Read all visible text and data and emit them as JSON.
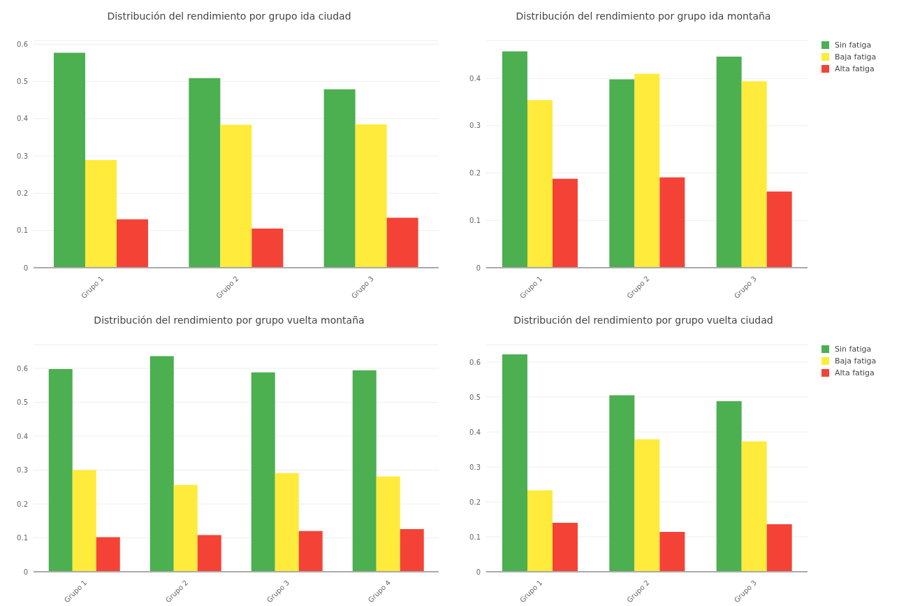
{
  "chart_data": [
    {
      "type": "bar",
      "title": "Distribución del rendimiento por grupo ida ciudad",
      "categories": [
        "Grupo 1",
        "Grupo 2",
        "Grupo 3"
      ],
      "series": [
        {
          "color": "#4caf50",
          "values": [
            0.577,
            0.509,
            0.479
          ]
        },
        {
          "color": "#ffeb3b",
          "values": [
            0.289,
            0.384,
            0.385
          ]
        },
        {
          "color": "#f44336",
          "values": [
            0.13,
            0.105,
            0.134
          ]
        }
      ],
      "ylim": [
        0,
        0.61
      ],
      "yticks": [
        0,
        0.1,
        0.2,
        0.3,
        0.4,
        0.5,
        0.6
      ],
      "grid": "y",
      "legend": false
    },
    {
      "type": "bar",
      "title": "Distribución del rendimiento por grupo ida montaña",
      "categories": [
        "Grupo 1",
        "Grupo 2",
        "Grupo 3"
      ],
      "series": [
        {
          "name": "Sin fatiga",
          "color": "#4caf50",
          "values": [
            0.457,
            0.398,
            0.446
          ]
        },
        {
          "name": "Baja fatiga",
          "color": "#ffeb3b",
          "values": [
            0.354,
            0.41,
            0.394
          ]
        },
        {
          "name": "Alta fatiga",
          "color": "#f44336",
          "values": [
            0.188,
            0.191,
            0.161
          ]
        }
      ],
      "ylim": [
        0,
        0.48
      ],
      "yticks": [
        0,
        0.1,
        0.2,
        0.3,
        0.4
      ],
      "grid": "y",
      "legend": "top right"
    },
    {
      "type": "bar",
      "title": "Distribución del rendimiento por grupo vuelta montaña",
      "categories": [
        "Grupo 1",
        "Grupo 2",
        "Grupo 3",
        "Grupo 4"
      ],
      "series": [
        {
          "color": "#4caf50",
          "values": [
            0.598,
            0.636,
            0.588,
            0.594
          ]
        },
        {
          "color": "#ffeb3b",
          "values": [
            0.3,
            0.256,
            0.291,
            0.281
          ]
        },
        {
          "color": "#f44336",
          "values": [
            0.102,
            0.108,
            0.12,
            0.126
          ]
        }
      ],
      "ylim": [
        0,
        0.67
      ],
      "yticks": [
        0,
        0.1,
        0.2,
        0.3,
        0.4,
        0.5,
        0.6
      ],
      "grid": "y",
      "legend": false
    },
    {
      "type": "bar",
      "title": "Distribución del rendimiento por grupo vuelta ciudad",
      "categories": [
        "Grupo 1",
        "Grupo 2",
        "Grupo 3"
      ],
      "series": [
        {
          "name": "Sin fatiga",
          "color": "#4caf50",
          "values": [
            0.622,
            0.505,
            0.488
          ]
        },
        {
          "name": "Baja fatiga",
          "color": "#ffeb3b",
          "values": [
            0.233,
            0.379,
            0.373
          ]
        },
        {
          "name": "Alta fatiga",
          "color": "#f44336",
          "values": [
            0.14,
            0.114,
            0.136
          ]
        }
      ],
      "ylim": [
        0,
        0.65
      ],
      "yticks": [
        0,
        0.1,
        0.2,
        0.3,
        0.4,
        0.5,
        0.6
      ],
      "grid": "y",
      "legend": "top right"
    }
  ]
}
